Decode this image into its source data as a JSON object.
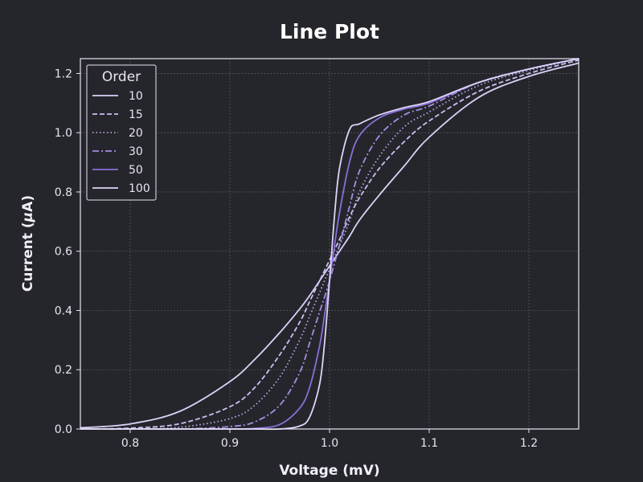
{
  "chart_data": {
    "type": "line",
    "title": "Line Plot",
    "xlabel": "Voltage (mV)",
    "ylabel_prefix": "Current (",
    "ylabel_symbol": "μ",
    "ylabel_suffix": "A)",
    "xlim": [
      0.75,
      1.25
    ],
    "ylim": [
      0.0,
      1.25
    ],
    "xticks": [
      0.8,
      0.9,
      1.0,
      1.1,
      1.2
    ],
    "xtick_labels": [
      "0.8",
      "0.9",
      "1.0",
      "1.1",
      "1.2"
    ],
    "yticks": [
      0.0,
      0.2,
      0.4,
      0.6,
      0.8,
      1.0,
      1.2
    ],
    "ytick_labels": [
      "0.0",
      "0.2",
      "0.4",
      "0.6",
      "0.8",
      "1.0",
      "1.2"
    ],
    "grid": true,
    "legend": {
      "title": "Order",
      "placement": "top-left"
    },
    "x": [
      0.75,
      0.8,
      0.85,
      0.9,
      0.925,
      0.95,
      0.97,
      0.98,
      0.99,
      0.995,
      1.0,
      1.005,
      1.01,
      1.02,
      1.03,
      1.05,
      1.075,
      1.1,
      1.15,
      1.2,
      1.25
    ],
    "series": [
      {
        "name": "10",
        "style": "solid",
        "color": "#d9d2f7",
        "values": [
          0.004,
          0.017,
          0.06,
          0.16,
          0.235,
          0.325,
          0.405,
          0.45,
          0.5,
          0.525,
          0.55,
          0.575,
          0.6,
          0.65,
          0.705,
          0.79,
          0.888,
          0.985,
          1.12,
          1.19,
          1.235
        ]
      },
      {
        "name": "15",
        "style": "dashed",
        "color": "#cbbff2",
        "values": [
          0.0,
          0.003,
          0.018,
          0.075,
          0.14,
          0.25,
          0.36,
          0.43,
          0.5,
          0.535,
          0.57,
          0.605,
          0.64,
          0.715,
          0.78,
          0.88,
          0.97,
          1.04,
          1.14,
          1.2,
          1.245
        ]
      },
      {
        "name": "20",
        "style": "dotted",
        "color": "#b9a7ec",
        "values": [
          0.0,
          0.0,
          0.006,
          0.035,
          0.08,
          0.175,
          0.3,
          0.38,
          0.46,
          0.5,
          0.54,
          0.58,
          0.62,
          0.7,
          0.8,
          0.92,
          1.02,
          1.07,
          1.16,
          1.21,
          1.25
        ]
      },
      {
        "name": "30",
        "style": "dashdot",
        "color": "#a48ee2",
        "values": [
          0.0,
          0.0,
          0.0,
          0.008,
          0.024,
          0.08,
          0.19,
          0.29,
          0.395,
          0.445,
          0.5,
          0.56,
          0.62,
          0.75,
          0.87,
          0.99,
          1.06,
          1.09,
          1.17,
          1.215,
          1.25
        ]
      },
      {
        "name": "50",
        "style": "solid",
        "color": "#8b6fd8",
        "values": [
          0.0,
          0.0,
          0.0,
          0.0,
          0.002,
          0.015,
          0.07,
          0.14,
          0.28,
          0.385,
          0.5,
          0.62,
          0.73,
          0.9,
          0.99,
          1.05,
          1.08,
          1.1,
          1.17,
          1.215,
          1.25
        ]
      },
      {
        "name": "100",
        "style": "solid",
        "color": "#ddd6f8",
        "values": [
          0.0,
          0.0,
          0.0,
          0.0,
          0.0,
          0.0,
          0.01,
          0.04,
          0.15,
          0.29,
          0.5,
          0.72,
          0.88,
          1.01,
          1.03,
          1.06,
          1.085,
          1.105,
          1.17,
          1.215,
          1.25
        ]
      }
    ]
  },
  "colors": {
    "background": "#25262b",
    "grid": "#55565c",
    "axis": "#e8e4f4",
    "legend_border": "#e8e4f4"
  }
}
